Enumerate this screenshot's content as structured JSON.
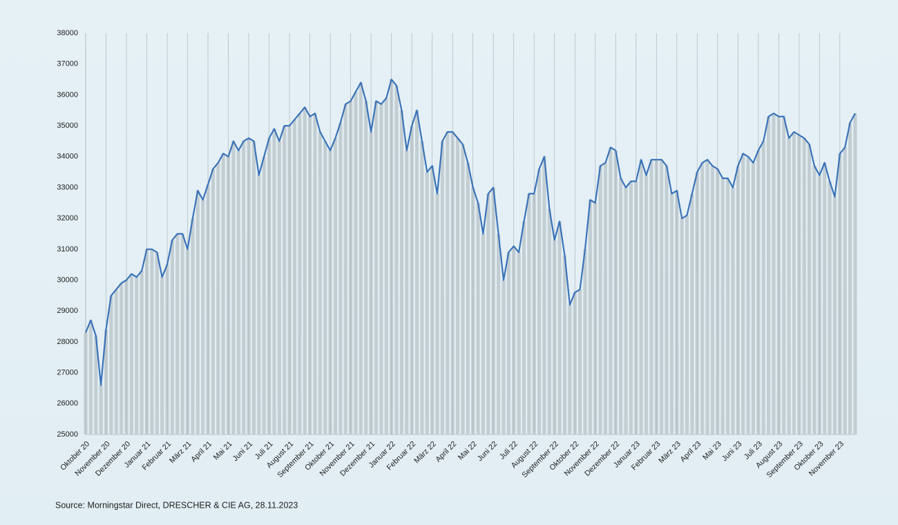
{
  "chart_data": {
    "type": "line",
    "source": "Source: Morningstar Direct, DRESCHER & CIE AG, 28.11.2023",
    "categories": [
      "Oktober 20",
      null,
      null,
      null,
      "November 20",
      null,
      null,
      null,
      "Dezember 20",
      null,
      null,
      null,
      "Januar 21",
      null,
      null,
      null,
      "Februar 21",
      null,
      null,
      null,
      "März 21",
      null,
      null,
      null,
      "April 21",
      null,
      null,
      null,
      "Mai 21",
      null,
      null,
      null,
      "Juni 21",
      null,
      null,
      null,
      "Juli 21",
      null,
      null,
      null,
      "August 21",
      null,
      null,
      null,
      "September 21",
      null,
      null,
      null,
      "Oktober 21",
      null,
      null,
      null,
      "November 21",
      null,
      null,
      null,
      "Dezember 21",
      null,
      null,
      null,
      "Januar 22",
      null,
      null,
      null,
      "Februar 22",
      null,
      null,
      null,
      "März 22",
      null,
      null,
      null,
      "April 22",
      null,
      null,
      null,
      "Mai 22",
      null,
      null,
      null,
      "Juni 22",
      null,
      null,
      null,
      "Juli 22",
      null,
      null,
      null,
      "August 22",
      null,
      null,
      null,
      "September 22",
      null,
      null,
      null,
      "Oktober 22",
      null,
      null,
      null,
      "November 22",
      null,
      null,
      null,
      "Dezember 22",
      null,
      null,
      null,
      "Januar 23",
      null,
      null,
      null,
      "Februar 23",
      null,
      null,
      null,
      "März 23",
      null,
      null,
      null,
      "April 23",
      null,
      null,
      null,
      "Mai 23",
      null,
      null,
      null,
      "Juni 23",
      null,
      null,
      null,
      "Juli 23",
      null,
      null,
      null,
      "August 23",
      null,
      null,
      null,
      "September 23",
      null,
      null,
      null,
      "Oktober 23",
      null,
      null,
      null,
      "November 23",
      null,
      null,
      null
    ],
    "values": [
      28300,
      28700,
      28200,
      26600,
      28400,
      29500,
      29700,
      29900,
      30000,
      30200,
      30100,
      30300,
      31000,
      31000,
      30900,
      30100,
      30500,
      31300,
      31500,
      31500,
      31000,
      32000,
      32900,
      32600,
      33100,
      33600,
      33800,
      34100,
      34000,
      34500,
      34200,
      34500,
      34600,
      34500,
      33400,
      34000,
      34600,
      34900,
      34500,
      35000,
      35000,
      35200,
      35400,
      35600,
      35300,
      35400,
      34800,
      34500,
      34200,
      34600,
      35100,
      35700,
      35800,
      36100,
      36400,
      35800,
      34800,
      35800,
      35700,
      35900,
      36500,
      36300,
      35500,
      34200,
      35000,
      35500,
      34500,
      33500,
      33700,
      32800,
      34500,
      34800,
      34800,
      34600,
      34400,
      33800,
      33000,
      32500,
      31500,
      32800,
      33000,
      31500,
      30000,
      30900,
      31100,
      30900,
      31900,
      32800,
      32800,
      33600,
      34000,
      32300,
      31300,
      31900,
      30800,
      29200,
      29600,
      29700,
      31000,
      32600,
      32500,
      33700,
      33800,
      34300,
      34200,
      33300,
      33000,
      33200,
      33200,
      33900,
      33400,
      33900,
      33900,
      33900,
      33700,
      32800,
      32900,
      32000,
      32100,
      32800,
      33500,
      33800,
      33900,
      33700,
      33600,
      33300,
      33300,
      33000,
      33700,
      34100,
      34000,
      33800,
      34200,
      34500,
      35300,
      35400,
      35300,
      35300,
      34600,
      34800,
      34700,
      34600,
      34400,
      33700,
      33400,
      33800,
      33200,
      32700,
      34100,
      34300,
      35100,
      35400
    ],
    "color": "#3a72b8",
    "fill_color": "#c3ced2",
    "ylim": [
      25000,
      38000
    ],
    "yticks": [
      25000,
      26000,
      27000,
      28000,
      29000,
      30000,
      31000,
      32000,
      33000,
      34000,
      35000,
      36000,
      37000,
      38000
    ],
    "grid": true
  }
}
